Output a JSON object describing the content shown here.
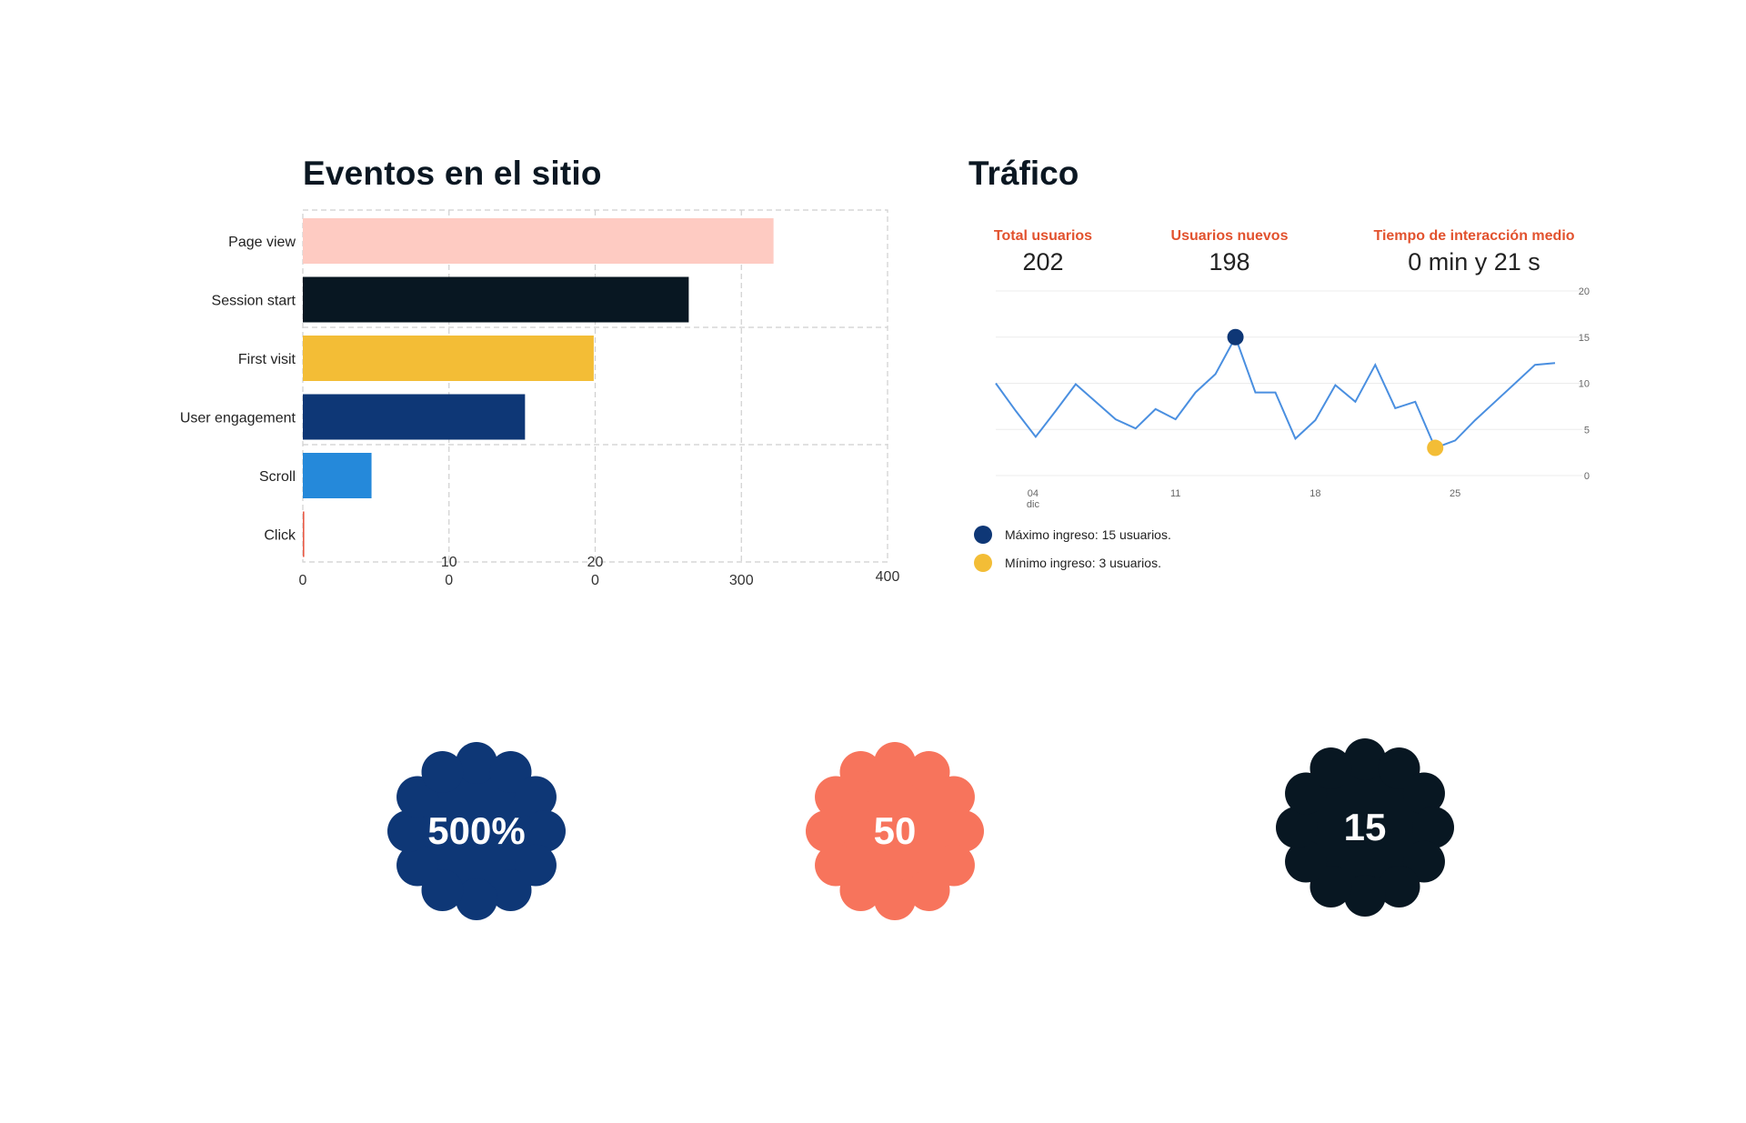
{
  "events": {
    "title": "Eventos en el sitio",
    "chart_data": {
      "type": "bar",
      "orientation": "horizontal",
      "categories": [
        "Page view",
        "Session start",
        "First visit",
        "User engagement",
        "Scroll",
        "Click"
      ],
      "values": [
        322,
        264,
        199,
        152,
        47,
        1
      ],
      "colors": [
        "#fecbc2",
        "#081722",
        "#f3bd36",
        "#0e3776",
        "#2589da",
        "#e85a45"
      ],
      "xlim": [
        0,
        400
      ],
      "x_tick_labels": [
        [
          "0"
        ],
        [
          "10",
          "0"
        ],
        [
          "20",
          "0"
        ],
        [
          "300"
        ],
        [
          "400"
        ]
      ],
      "grid": true
    }
  },
  "traffic": {
    "title": "Tráfico",
    "stats": [
      {
        "label": "Total usuarios",
        "value": "202"
      },
      {
        "label": "Usuarios nuevos",
        "value": "198"
      },
      {
        "label": "Tiempo de interacción medio",
        "value": "0 min y 21 s"
      }
    ],
    "chart_data": {
      "type": "line",
      "x": [
        1,
        2,
        3,
        4,
        5,
        6,
        7,
        8,
        9,
        10,
        11,
        12,
        13,
        14,
        15,
        16,
        17,
        18,
        19,
        20,
        21,
        22,
        23,
        24,
        25,
        26,
        27,
        28,
        29
      ],
      "values": [
        10,
        7,
        4.2,
        7,
        9.9,
        8,
        6.1,
        5.1,
        7.2,
        6.1,
        9,
        11,
        15,
        9,
        9,
        4,
        6,
        9.8,
        8,
        12,
        7.3,
        8,
        3,
        3.8,
        6,
        8,
        10,
        12,
        12.2
      ],
      "ylim": [
        0,
        20
      ],
      "y_ticks": [
        "20",
        "15",
        "10",
        "5",
        "0"
      ],
      "x_ticks": [
        {
          "label": "04",
          "sub": "dic"
        },
        {
          "label": "11",
          "sub": ""
        },
        {
          "label": "18",
          "sub": ""
        },
        {
          "label": "25",
          "sub": ""
        }
      ],
      "color": "#4a8fe0",
      "max_point": {
        "index": 12,
        "color": "#0e3776"
      },
      "min_point": {
        "index": 22,
        "color": "#f3bd36"
      }
    },
    "legend": [
      {
        "text": "Máximo ingreso: 15 usuarios.",
        "color": "#0e3776"
      },
      {
        "text": "Mínimo ingreso: 3 usuarios.",
        "color": "#f3bd36"
      }
    ]
  },
  "badges": [
    {
      "text": "500%",
      "color": "#0e3776"
    },
    {
      "text": "50",
      "color": "#f7745c"
    },
    {
      "text": "15",
      "color": "#081722"
    }
  ]
}
